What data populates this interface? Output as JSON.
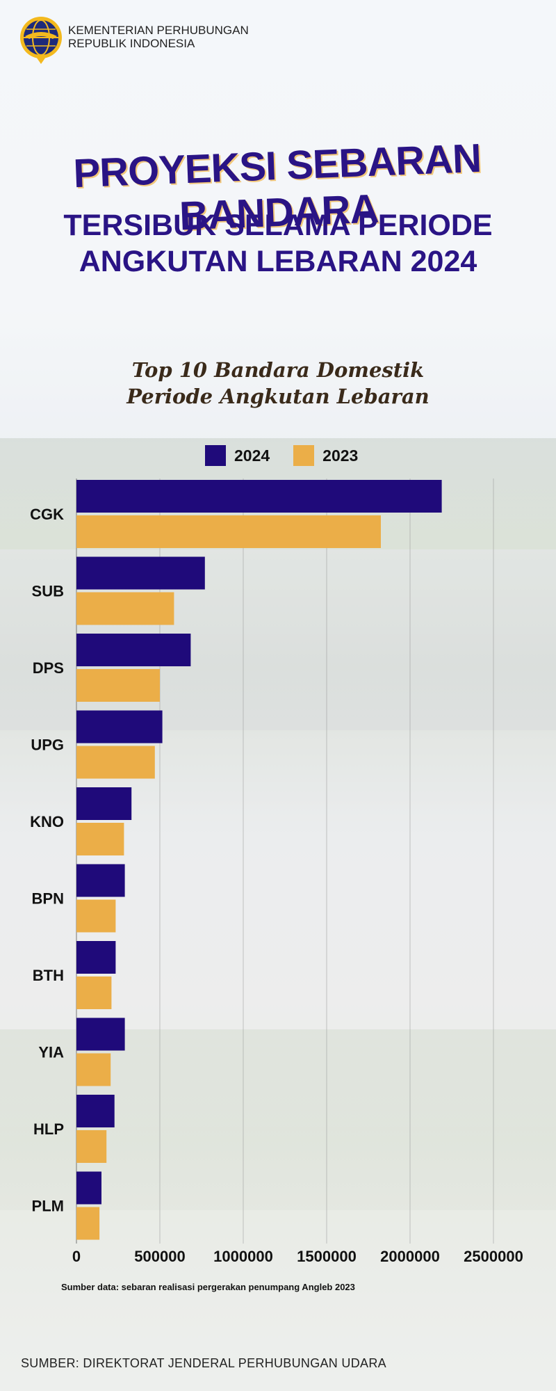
{
  "header": {
    "org_line1": "KEMENTERIAN PERHUBUNGAN",
    "org_line2": "REPUBLIK INDONESIA",
    "logo_icon": "ministry-emblem-icon"
  },
  "title": {
    "line1": "PROYEKSI SEBARAN BANDARA",
    "line2": "TERSIBUK SELAMA PERIODE",
    "line3": "ANGKUTAN LEBARAN 2024"
  },
  "chart_data": {
    "type": "bar",
    "orientation": "horizontal",
    "title_line1": "Top 10 Bandara Domestik",
    "title_line2": "Periode Angkutan Lebaran",
    "categories": [
      "CGK",
      "SUB",
      "DPS",
      "UPG",
      "KNO",
      "BPN",
      "BTH",
      "YIA",
      "HLP",
      "PLM"
    ],
    "series": [
      {
        "name": "2024",
        "color": "#1f0a7a",
        "values": [
          2190000,
          770000,
          685000,
          515000,
          330000,
          290000,
          235000,
          290000,
          228000,
          150000
        ]
      },
      {
        "name": "2023",
        "color": "#ebae48",
        "values": [
          1825000,
          585000,
          500000,
          470000,
          285000,
          235000,
          210000,
          205000,
          180000,
          138000
        ]
      }
    ],
    "xlim": [
      0,
      2500000
    ],
    "ticks": [
      "0",
      "500000",
      "1000000",
      "1500000",
      "2000000",
      "2500000"
    ],
    "tick_values": [
      0,
      500000,
      1000000,
      1500000,
      2000000,
      2500000
    ],
    "grid": true,
    "legend_position": "top"
  },
  "source_note": "Sumber data: sebaran realisasi pergerakan penumpang Angleb 2023",
  "footer_source": "SUMBER: DIREKTORAT JENDERAL PERHUBUNGAN UDARA"
}
